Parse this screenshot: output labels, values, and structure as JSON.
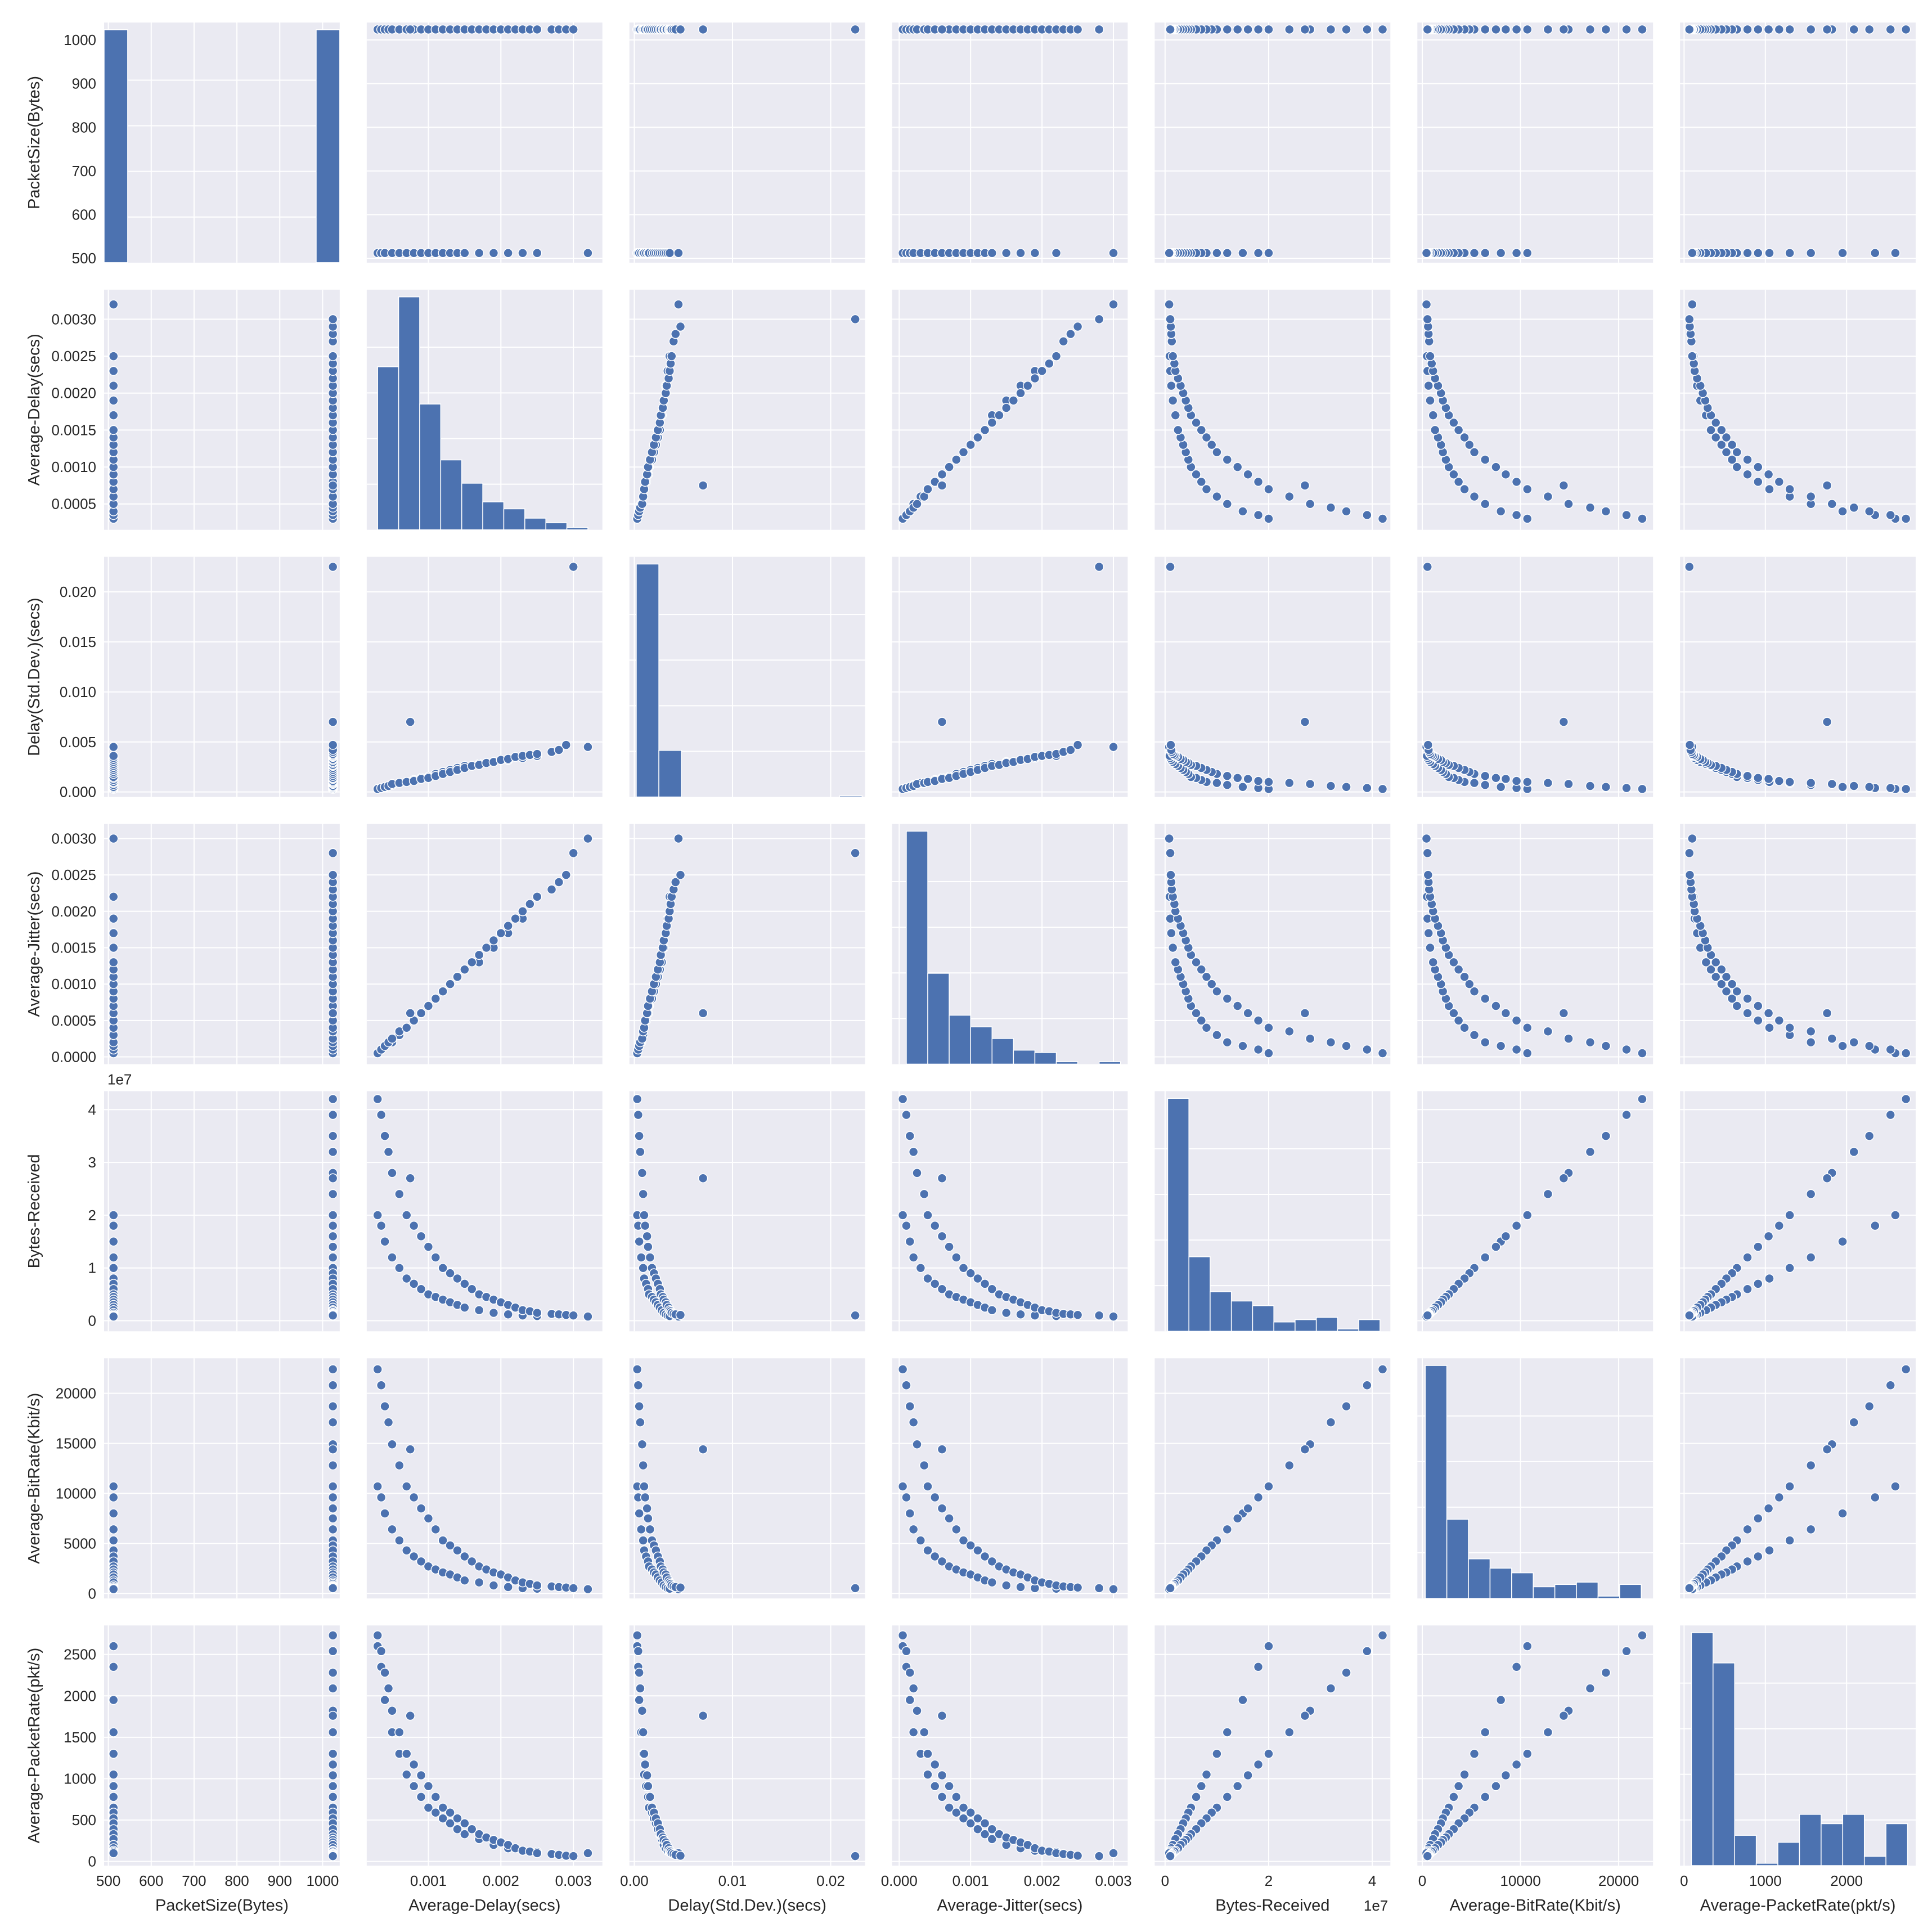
{
  "chart_data": {
    "type": "pairplot",
    "grid": true,
    "colors": {
      "marker": "#4c72b0",
      "panel_bg": "#eaeaf2",
      "gridline": "#ffffff",
      "edge": "#ffffff"
    },
    "variables": [
      {
        "name": "PacketSize(Bytes)",
        "lim": [
          490,
          1040
        ],
        "ticks": [
          500,
          600,
          700,
          800,
          900,
          1000
        ],
        "ticklabels": [
          "500",
          "600",
          "700",
          "800",
          "900",
          "1000"
        ],
        "offset": ""
      },
      {
        "name": "Average-Delay(secs)",
        "lim": [
          0.00015,
          0.0034
        ],
        "ticks": [
          0.0005,
          0.001,
          0.0015,
          0.002,
          0.0025,
          0.003
        ],
        "ticklabels": [
          "0.0005",
          "0.0010",
          "0.0015",
          "0.0020",
          "0.0025",
          "0.0030"
        ],
        "xticks": [
          0.001,
          0.002,
          0.003
        ],
        "xticklabels": [
          "0.001",
          "0.002",
          "0.003"
        ],
        "offset": ""
      },
      {
        "name": "Delay(Std.Dev.)(secs)",
        "lim": [
          -0.0005,
          0.0235
        ],
        "ticks": [
          0,
          0.005,
          0.01,
          0.015,
          0.02
        ],
        "ticklabels": [
          "0.000",
          "0.005",
          "0.010",
          "0.015",
          "0.020"
        ],
        "xticks": [
          0,
          0.01,
          0.02
        ],
        "xticklabels": [
          "0.00",
          "0.01",
          "0.02"
        ],
        "offset": ""
      },
      {
        "name": "Average-Jitter(secs)",
        "lim": [
          -0.0001,
          0.0032
        ],
        "ticks": [
          0,
          0.0005,
          0.001,
          0.0015,
          0.002,
          0.0025,
          0.003
        ],
        "ticklabels": [
          "0.0000",
          "0.0005",
          "0.0010",
          "0.0015",
          "0.0020",
          "0.0025",
          "0.0030"
        ],
        "xticks": [
          0,
          0.001,
          0.002,
          0.003
        ],
        "xticklabels": [
          "0.000",
          "0.001",
          "0.002",
          "0.003"
        ],
        "offset": ""
      },
      {
        "name": "Bytes-Received",
        "lim": [
          -2000000,
          43500000
        ],
        "ticks": [
          0,
          10000000,
          20000000,
          30000000,
          40000000
        ],
        "ticklabels": [
          "0",
          "1",
          "2",
          "3",
          "4"
        ],
        "xticks": [
          0,
          20000000,
          40000000
        ],
        "xticklabels": [
          "0",
          "2",
          "4"
        ],
        "offset": "1e7"
      },
      {
        "name": "Average-BitRate(Kbit/s)",
        "lim": [
          -500,
          23500
        ],
        "ticks": [
          0,
          5000,
          10000,
          15000,
          20000
        ],
        "ticklabels": [
          "0",
          "5000",
          "10000",
          "15000",
          "20000"
        ],
        "xticks": [
          0,
          10000,
          20000
        ],
        "xticklabels": [
          "0",
          "10000",
          "20000"
        ],
        "offset": ""
      },
      {
        "name": "Average-PacketRate(pkt/s)",
        "lim": [
          -50,
          2850
        ],
        "ticks": [
          0,
          500,
          1000,
          1500,
          2000,
          2500
        ],
        "ticklabels": [
          "0",
          "500",
          "1000",
          "1500",
          "2000",
          "2500"
        ],
        "xticks": [
          0,
          1000,
          2000
        ],
        "xticklabels": [
          "0",
          "1000",
          "2000"
        ],
        "offset": ""
      }
    ],
    "histograms": [
      {
        "variable": "PacketSize(Bytes)",
        "bin_edges": [
          490,
          545,
          600,
          655,
          710,
          765,
          820,
          875,
          930,
          985,
          1040
        ],
        "relative_heights": [
          1.0,
          0,
          0,
          0,
          0,
          0,
          0,
          0,
          0,
          1.0
        ]
      },
      {
        "variable": "Average-Delay(secs)",
        "bin_edges": [
          0.0003,
          0.00059,
          0.00088,
          0.00117,
          0.00146,
          0.00175,
          0.00204,
          0.00233,
          0.00262,
          0.00291,
          0.0032
        ],
        "relative_heights": [
          0.7,
          1.0,
          0.54,
          0.3,
          0.2,
          0.12,
          0.09,
          0.05,
          0.03,
          0.01
        ]
      },
      {
        "variable": "Delay(Std.Dev.)(secs)",
        "bin_edges": [
          0.0002,
          0.0025,
          0.0048,
          0.0071,
          0.0094,
          0.0117,
          0.014,
          0.0163,
          0.0186,
          0.0209,
          0.0232
        ],
        "relative_heights": [
          1.0,
          0.2,
          0,
          0,
          0,
          0,
          0,
          0,
          0,
          0.005
        ]
      },
      {
        "variable": "Average-Jitter(secs)",
        "bin_edges": [
          0.0001,
          0.0004,
          0.0007,
          0.001,
          0.0013,
          0.0016,
          0.0019,
          0.0022,
          0.0025,
          0.0028,
          0.0031
        ],
        "relative_heights": [
          1.0,
          0.39,
          0.21,
          0.16,
          0.11,
          0.06,
          0.05,
          0.01,
          0.0,
          0.01
        ]
      },
      {
        "variable": "Bytes-Received",
        "bin_edges": [
          500000,
          4600000,
          8700000,
          12800000,
          16900000,
          21000000,
          25100000,
          29200000,
          33300000,
          37400000,
          41500000
        ],
        "relative_heights": [
          1.0,
          0.32,
          0.17,
          0.13,
          0.11,
          0.04,
          0.05,
          0.06,
          0.01,
          0.05
        ]
      },
      {
        "variable": "Average-BitRate(Kbit/s)",
        "bin_edges": [
          300,
          2500,
          4700,
          6900,
          9100,
          11300,
          13500,
          15700,
          17900,
          20100,
          22300
        ],
        "relative_heights": [
          1.0,
          0.34,
          0.17,
          0.13,
          0.11,
          0.05,
          0.06,
          0.07,
          0.01,
          0.06
        ]
      },
      {
        "variable": "Average-PacketRate(pkt/s)",
        "bin_edges": [
          90,
          356,
          622,
          888,
          1154,
          1420,
          1686,
          1952,
          2218,
          2484,
          2750
        ],
        "relative_heights": [
          1.0,
          0.87,
          0.13,
          0.01,
          0.1,
          0.22,
          0.18,
          0.22,
          0.04,
          0.18
        ]
      }
    ],
    "observations": {
      "PacketSize(Bytes)": [
        512,
        512,
        512,
        512,
        512,
        512,
        512,
        512,
        512,
        512,
        512,
        512,
        512,
        512,
        512,
        512,
        512,
        512,
        512,
        512,
        1024,
        1024,
        1024,
        1024,
        1024,
        1024,
        1024,
        1024,
        1024,
        1024,
        1024,
        1024,
        1024,
        1024,
        1024,
        1024,
        1024,
        1024,
        1024,
        1024,
        1024,
        1024,
        1024,
        1024,
        1024,
        1024,
        1024,
        1024,
        1024,
        1024
      ],
      "Average-Delay(secs)": [
        0.0003,
        0.00035,
        0.0004,
        0.0005,
        0.0006,
        0.0007,
        0.0008,
        0.0009,
        0.001,
        0.0011,
        0.0012,
        0.0013,
        0.0014,
        0.0015,
        0.0017,
        0.0019,
        0.0021,
        0.0023,
        0.0025,
        0.0032,
        0.0003,
        0.00035,
        0.0004,
        0.00045,
        0.0005,
        0.0006,
        0.0007,
        0.0008,
        0.0009,
        0.001,
        0.0011,
        0.0012,
        0.0013,
        0.0014,
        0.0015,
        0.0016,
        0.0017,
        0.0018,
        0.0019,
        0.002,
        0.0021,
        0.0022,
        0.0023,
        0.0024,
        0.0025,
        0.0027,
        0.0028,
        0.0029,
        0.003,
        0.00075
      ],
      "Delay(Std.Dev.)(secs)": [
        0.0003,
        0.0004,
        0.0005,
        0.0007,
        0.0009,
        0.001,
        0.0012,
        0.0014,
        0.0015,
        0.0018,
        0.002,
        0.0022,
        0.0024,
        0.0026,
        0.0028,
        0.003,
        0.0032,
        0.0034,
        0.0036,
        0.0045,
        0.0003,
        0.0004,
        0.0005,
        0.0006,
        0.0008,
        0.0009,
        0.001,
        0.0011,
        0.0013,
        0.0014,
        0.0016,
        0.0018,
        0.002,
        0.0022,
        0.0024,
        0.0026,
        0.0027,
        0.0029,
        0.003,
        0.0032,
        0.0033,
        0.0035,
        0.0036,
        0.0037,
        0.0038,
        0.004,
        0.0042,
        0.0047,
        0.0225,
        0.007
      ],
      "Average-Jitter(secs)": [
        5e-05,
        0.0001,
        0.00015,
        0.0002,
        0.0003,
        0.0004,
        0.0005,
        0.0006,
        0.0007,
        0.0008,
        0.0009,
        0.001,
        0.0011,
        0.0012,
        0.0013,
        0.0015,
        0.0017,
        0.0019,
        0.0022,
        0.003,
        5e-05,
        0.0001,
        0.00015,
        0.0002,
        0.00025,
        0.00035,
        0.0004,
        0.0005,
        0.0006,
        0.0007,
        0.0008,
        0.0009,
        0.001,
        0.0011,
        0.0012,
        0.0013,
        0.0014,
        0.0015,
        0.0016,
        0.0017,
        0.0018,
        0.0019,
        0.002,
        0.0021,
        0.0022,
        0.0023,
        0.0024,
        0.0025,
        0.0028,
        0.0006
      ],
      "Bytes-Received": [
        20000000,
        18000000,
        15000000,
        12000000,
        10000000,
        8000000,
        7000000,
        6000000,
        5000000,
        4500000,
        4000000,
        3500000,
        3000000,
        2500000,
        2000000,
        1500000,
        1200000,
        1000000,
        900000,
        800000,
        42000000,
        39000000,
        35000000,
        32000000,
        28000000,
        24000000,
        20000000,
        18000000,
        16000000,
        14000000,
        12000000,
        10000000,
        9000000,
        8000000,
        7000000,
        6000000,
        5000000,
        4500000,
        4000000,
        3500000,
        3000000,
        2500000,
        2000000,
        1800000,
        1500000,
        1300000,
        1200000,
        1100000,
        1000000,
        27000000
      ],
      "Average-BitRate(Kbit/s)": [
        10700,
        9600,
        8000,
        6400,
        5300,
        4300,
        3700,
        3200,
        2700,
        2400,
        2100,
        1900,
        1600,
        1300,
        1100,
        800,
        640,
        530,
        480,
        430,
        22400,
        20800,
        18700,
        17100,
        14900,
        12800,
        10700,
        9600,
        8500,
        7500,
        6400,
        5300,
        4800,
        4300,
        3700,
        3200,
        2700,
        2400,
        2100,
        1900,
        1600,
        1300,
        1100,
        960,
        800,
        700,
        640,
        590,
        530,
        14400
      ],
      "Average-PacketRate(pkt/s)": [
        2600,
        2350,
        1950,
        1560,
        1300,
        1050,
        910,
        780,
        650,
        590,
        520,
        460,
        390,
        330,
        270,
        200,
        160,
        130,
        115,
        100,
        2730,
        2540,
        2280,
        2090,
        1820,
        1560,
        1300,
        1170,
        1040,
        910,
        780,
        650,
        590,
        520,
        460,
        390,
        330,
        290,
        260,
        230,
        200,
        160,
        130,
        120,
        100,
        90,
        80,
        70,
        65,
        1760
      ]
    }
  }
}
